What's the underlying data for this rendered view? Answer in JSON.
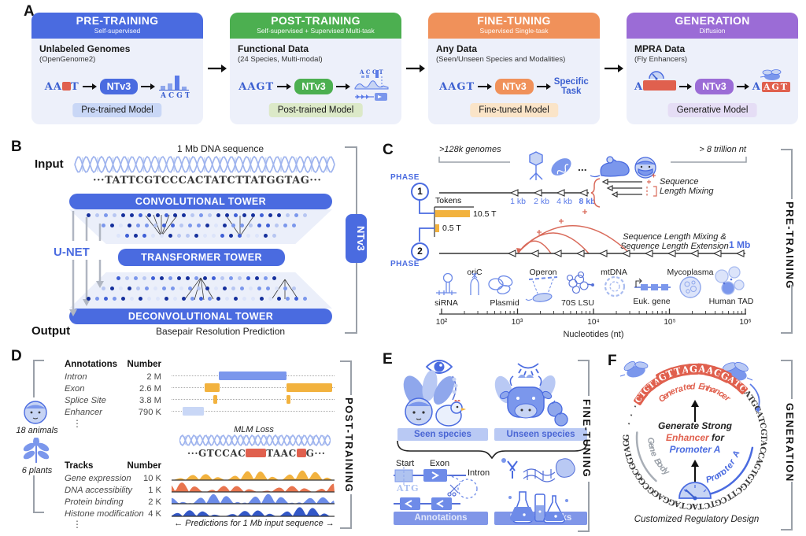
{
  "colors": {
    "blue": "#4A6BE0",
    "green": "#4CAF50",
    "orange": "#F0915A",
    "purple": "#9B6CD6",
    "red": "#E0604E",
    "seq_blue": "#3B5FD0",
    "token_orange": "#F2B23E",
    "badge_blue": "#C9D7F6",
    "badge_green": "#DCE9C8",
    "badge_orange": "#FAE4C8",
    "badge_purple": "#E5DDF5"
  },
  "panelA": {
    "label": "A",
    "cards": [
      {
        "title": "PRE-TRAINING",
        "subtitle": "Self-supervised",
        "data_title": "Unlabeled Genomes",
        "data_subtitle": "(OpenGenome2)",
        "input_prefix": "AA",
        "input_suffix": "T",
        "model": "NTv3",
        "output_letters": "ACGT",
        "badge": "Pre-trained Model"
      },
      {
        "title": "POST-TRAINING",
        "subtitle": "Self-supervised + Supervised Multi-task",
        "data_title": "Functional Data",
        "data_subtitle": "(24 Species, Multi-modal)",
        "input": "AAGT",
        "model": "NTv3",
        "output_letters": "ACGT",
        "badge": "Post-trained Model"
      },
      {
        "title": "FINE-TUNING",
        "subtitle": "Supervised Single-task",
        "data_title": "Any Data",
        "data_subtitle": "(Seen/Unseen Species and Modalities)",
        "input": "AAGT",
        "model": "NTv3",
        "output_line1": "Specific",
        "output_line2": "Task",
        "badge": "Fine-tuned Model"
      },
      {
        "title": "GENERATION",
        "subtitle": "Diffusion",
        "data_title": "MPRA Data",
        "data_subtitle": "(Fly Enhancers)",
        "input_prefix": "A",
        "model": "NTv3",
        "output_prefix": "A",
        "output_letters": "AGT",
        "badge": "Generative Model"
      }
    ]
  },
  "panelB": {
    "label": "B",
    "title": "1 Mb DNA sequence",
    "input_label": "Input",
    "output_label": "Output",
    "sequence": "···TATTCGTCCCACTATCTTATGGTAG···",
    "conv_label": "CONVOLUTIONAL TOWER",
    "transformer_label": "TRANSFORMER TOWER",
    "deconv_label": "DECONVOLUTIONAL TOWER",
    "unet_label": "U-NET",
    "caption": "Basepair Resolution Prediction",
    "model": "NTv3"
  },
  "panelC": {
    "label": "C",
    "genomes_note": ">128k genomes",
    "nt_note": "> 8 trillion nt",
    "phase_label": "PHASE",
    "phase1": "1",
    "phase2": "2",
    "kb_labels": [
      "1 kb",
      "2 kb",
      "4 kb",
      "8 kb"
    ],
    "tokens_label": "Tokens",
    "token1": "10.5 T",
    "token2": "0.5 T",
    "mixing_line1": "Sequence",
    "mixing_line2": "Length Mixing",
    "ext_line1": "Sequence Length Mixing &",
    "ext_line2": "Sequence Length Extension",
    "mb_label": "1 Mb",
    "icon_labels": [
      "siRNA",
      "oriC",
      "Plasmid",
      "Operon",
      "70S LSU",
      "mtDNA",
      "Euk. gene",
      "Mycoplasma",
      "Human TAD"
    ],
    "axis_ticks": [
      "10²",
      "10³",
      "10⁴",
      "10⁵",
      "10⁶"
    ],
    "axis_label": "Nucleotides (nt)",
    "bracket": "PRE-TRAINING"
  },
  "panelD": {
    "label": "D",
    "animals": "18 animals",
    "plants": "6 plants",
    "ellipsis": "⋮",
    "ann": {
      "h1": "Annotations",
      "h2": "Number",
      "rows": [
        [
          "Intron",
          "2 M"
        ],
        [
          "Exon",
          "2.6 M"
        ],
        [
          "Splice Site",
          "3.8 M"
        ],
        [
          "Enhancer",
          "790 K"
        ]
      ]
    },
    "mlm": "MLM Loss",
    "seq1": "···GTCCAC",
    "seq2": "TAAC",
    "seq3": "G···",
    "trk": {
      "h1": "Tracks",
      "h2": "Number",
      "rows": [
        [
          "Gene expression",
          "10 K"
        ],
        [
          "DNA accessibility",
          "1 K"
        ],
        [
          "Protein binding",
          "2 K"
        ],
        [
          "Histone modification",
          "4 K"
        ]
      ]
    },
    "caption": "← Predictions for 1 Mb input sequence →",
    "bracket": "POST-TRAINING"
  },
  "panelE": {
    "label": "E",
    "seen": "Seen species",
    "unseen": "Unseen species",
    "start": "Start",
    "exon": "Exon",
    "intron": "Intron",
    "atg": "ATG",
    "annotations": "Annotations",
    "unseen_tracks": "Unseen tracks",
    "bracket": "FINE-TUNING"
  },
  "panelF": {
    "label": "F",
    "ring": {
      "dots": "···",
      "red1": "CTGTA",
      "red2": "GTTAGAAGG",
      "red3": "ATC",
      "black": "ATGCATCGTACCAGTGTGCTTCGTCTACTAGGAGGCGGCGGTAGG"
    },
    "labels": {
      "enhancer": "Generated Enhancer",
      "gene_body": "Gene Body",
      "promoter": "Promoter A"
    },
    "center": {
      "l1": "Generate Strong",
      "l2a": "Enhancer",
      "l2b": " for",
      "l3": "Promoter A"
    },
    "caption": "Customized Regulatory Design",
    "bracket": "GENERATION"
  }
}
